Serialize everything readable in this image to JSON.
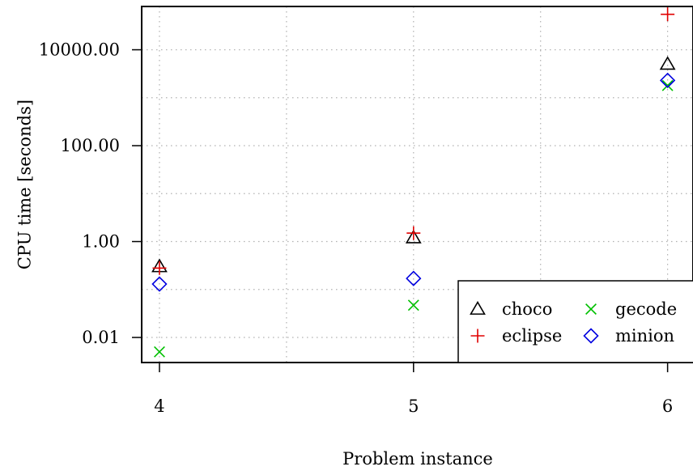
{
  "chart_data": {
    "type": "scatter",
    "xlabel": "Problem instance",
    "ylabel": "CPU time [seconds]",
    "y_scale": "log10",
    "ylim": [
      0.003,
      80000
    ],
    "xlim": [
      3.93,
      6.1
    ],
    "grid": true,
    "legend_position": "bottom-right",
    "x_ticks": [
      4,
      5,
      6
    ],
    "x_tick_labels": [
      "4",
      "5",
      "6"
    ],
    "y_ticks": [
      0.01,
      1,
      100,
      10000
    ],
    "y_tick_labels": [
      "0.01",
      "1.00",
      "100.00",
      "10000.00"
    ],
    "series": [
      {
        "name": "choco",
        "marker": "triangle",
        "color": "#000000",
        "x": [
          4,
          5,
          6
        ],
        "y": [
          0.3,
          1.2,
          5000
        ]
      },
      {
        "name": "eclipse",
        "marker": "plus",
        "color": "#e00000",
        "x": [
          4,
          5,
          6
        ],
        "y": [
          0.28,
          1.5,
          55000
        ]
      },
      {
        "name": "gecode",
        "marker": "cross",
        "color": "#00c000",
        "x": [
          4,
          5,
          6
        ],
        "y": [
          0.005,
          0.047,
          1800
        ]
      },
      {
        "name": "minion",
        "marker": "diamond",
        "color": "#0000e0",
        "x": [
          4,
          5,
          6
        ],
        "y": [
          0.13,
          0.17,
          2300
        ]
      }
    ]
  }
}
